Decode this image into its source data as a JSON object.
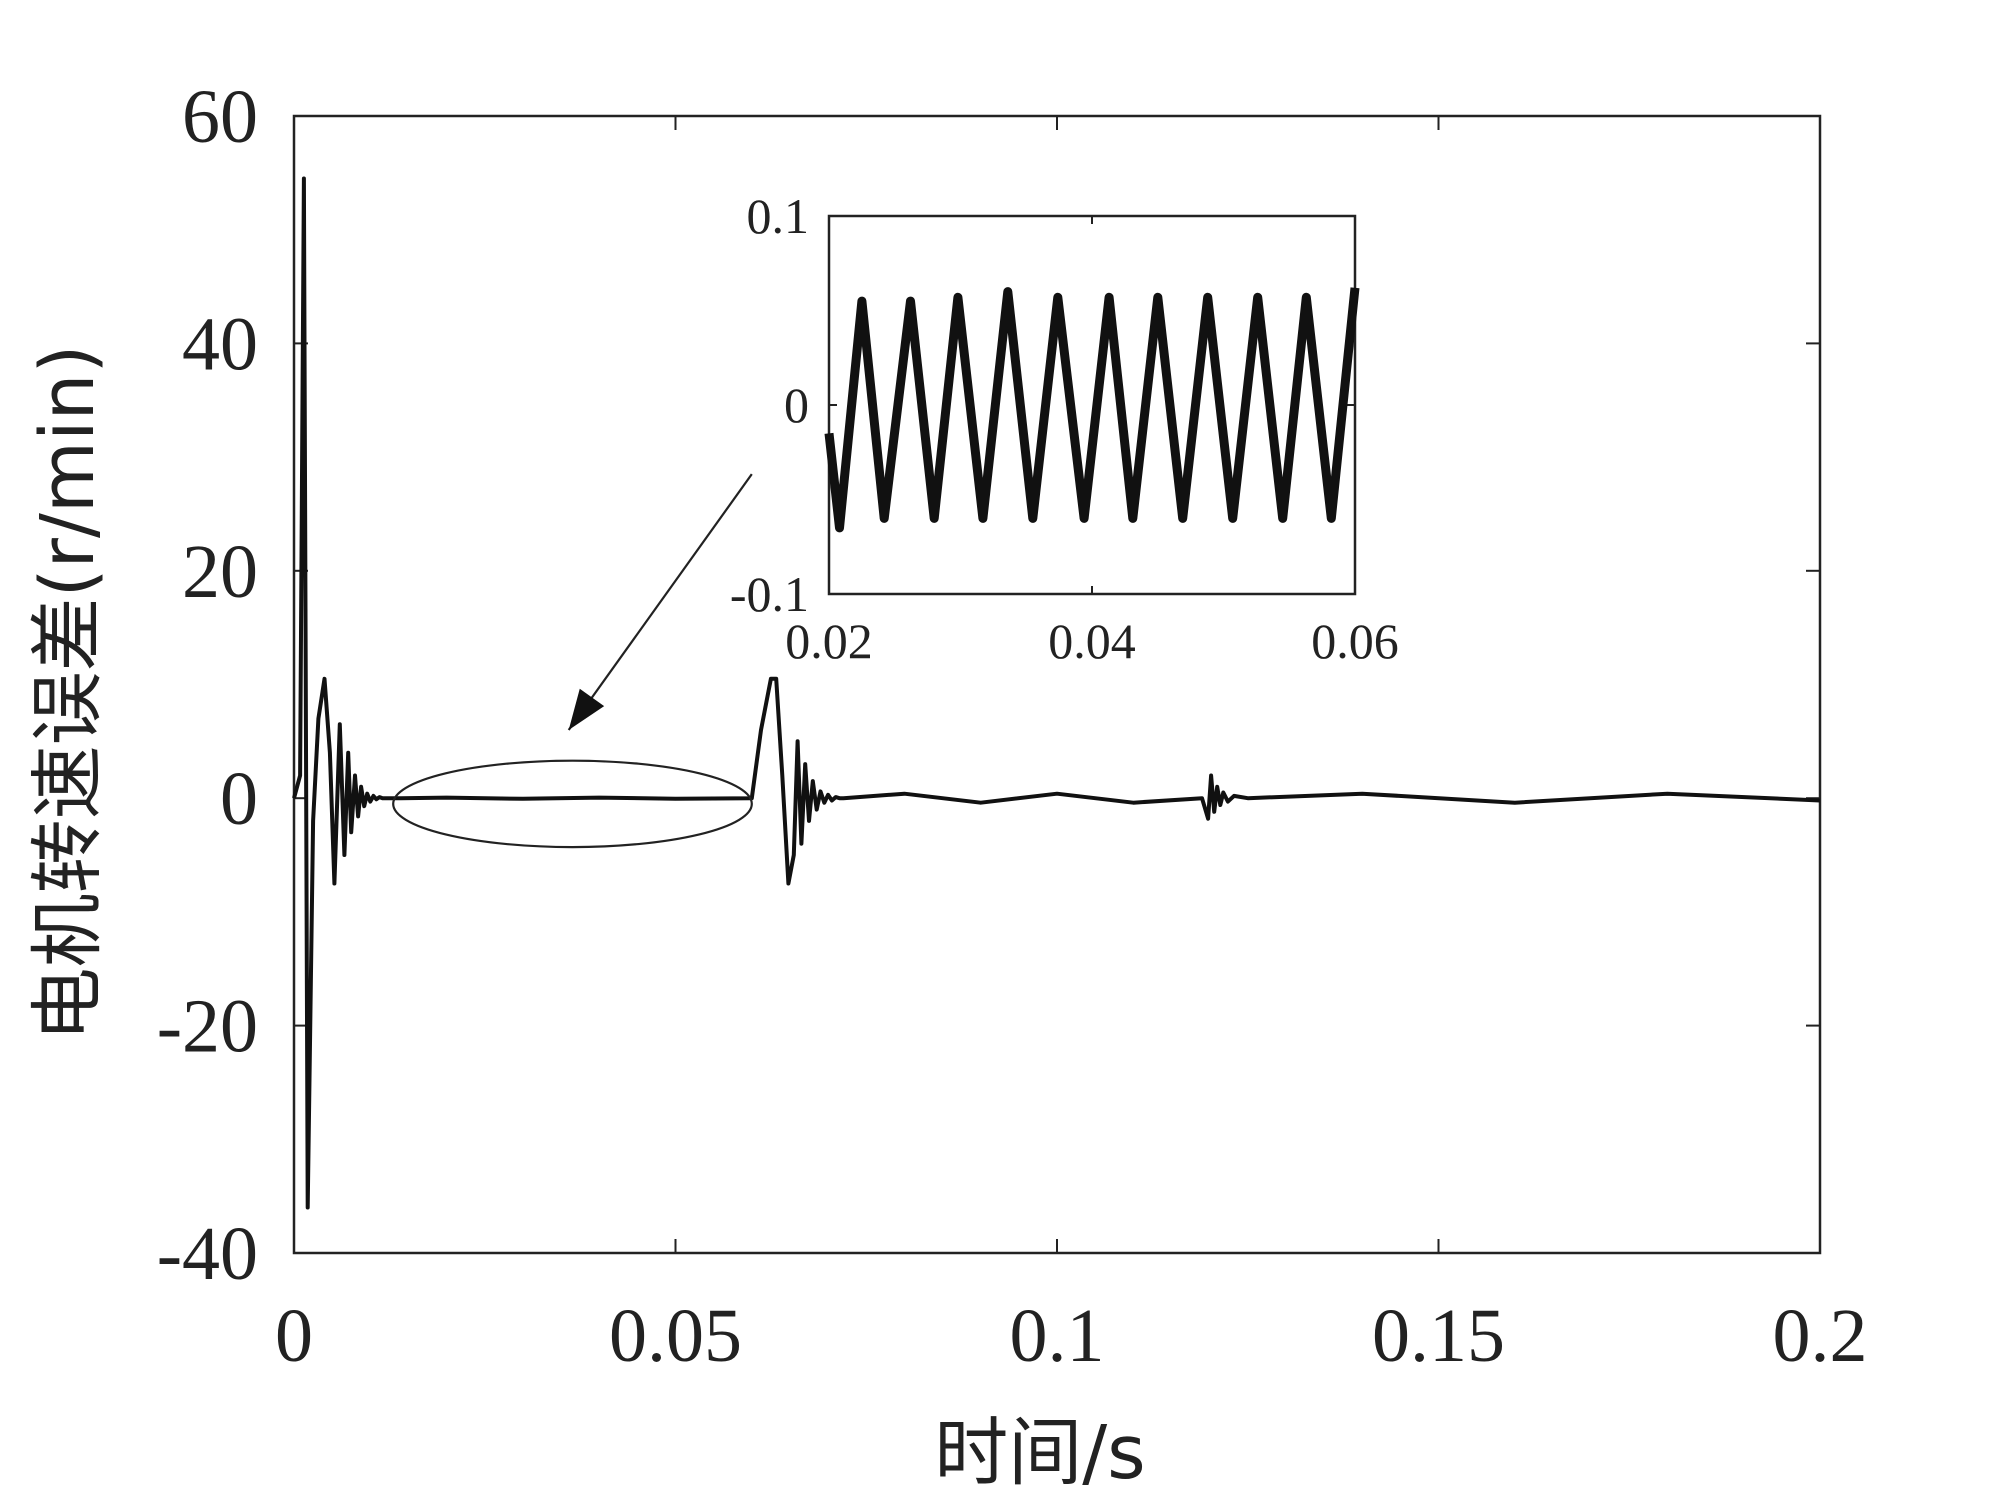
{
  "chart_data": [
    {
      "type": "line",
      "title": "",
      "xlabel": "时间/s",
      "ylabel": "电机转速误差(r/min)",
      "xlim": [
        0,
        0.2
      ],
      "ylim": [
        -40,
        60
      ],
      "xticks": [
        0,
        0.05,
        0.1,
        0.15,
        0.2
      ],
      "xtick_labels": [
        "0",
        "0.05",
        "0.1",
        "0.15",
        "0.2"
      ],
      "yticks": [
        -40,
        -20,
        0,
        20,
        40,
        60
      ],
      "ytick_labels": [
        "-40",
        "-20",
        "0",
        "20",
        "40",
        "60"
      ],
      "grid": false,
      "legend": "none",
      "line_color": "#111111",
      "series": [
        {
          "x": [
            0,
            0.0008,
            0.0013,
            0.0018,
            0.0025,
            0.0032,
            0.004,
            0.0047,
            0.0053,
            0.006,
            0.0066,
            0.0071,
            0.0075,
            0.008,
            0.0084,
            0.0088,
            0.0092,
            0.0096,
            0.01,
            0.0104,
            0.0108,
            0.0112,
            0.0116,
            0.012,
            0.0125,
            0.013,
            0.0135,
            0.014,
            0.02,
            0.03,
            0.04,
            0.05,
            0.06,
            0.0612,
            0.0625,
            0.0632,
            0.064,
            0.0648,
            0.0655,
            0.066,
            0.0665,
            0.067,
            0.0675,
            0.068,
            0.0685,
            0.069,
            0.0695,
            0.07,
            0.0705,
            0.071,
            0.0715,
            0.072,
            0.08,
            0.09,
            0.1,
            0.11,
            0.119,
            0.1198,
            0.1202,
            0.1206,
            0.121,
            0.1214,
            0.1218,
            0.1224,
            0.1232,
            0.125,
            0.14,
            0.16,
            0.18,
            0.2
          ],
          "y": [
            0,
            2,
            54.5,
            -36,
            -2,
            7,
            10.5,
            4,
            -7.5,
            6.5,
            -5,
            4,
            -3,
            2,
            -1.6,
            1,
            -0.7,
            0.4,
            -0.3,
            0.2,
            -0.1,
            0.1,
            0,
            0,
            0,
            0,
            0,
            0,
            0.05,
            -0.05,
            0.05,
            -0.05,
            0,
            6,
            10.5,
            10.5,
            2,
            -7.5,
            -5,
            5,
            -4,
            3,
            -2,
            1.5,
            -1,
            0.6,
            -0.4,
            0.3,
            -0.2,
            0.1,
            0,
            0,
            0.4,
            -0.4,
            0.4,
            -0.4,
            0,
            -1.8,
            2,
            -1.2,
            1,
            -0.6,
            0.5,
            -0.3,
            0.2,
            0,
            0.4,
            -0.4,
            0.4,
            -0.2
          ]
        }
      ],
      "annotations": [
        {
          "type": "ellipse",
          "x_range": [
            0.013,
            0.06
          ],
          "y_range": [
            -4.3,
            3.3
          ]
        },
        {
          "type": "arrow",
          "from": [
            0.06,
            28.5
          ],
          "to": [
            0.036,
            6
          ]
        }
      ]
    },
    {
      "type": "line",
      "role": "inset",
      "title": "",
      "xlim": [
        0.02,
        0.06
      ],
      "ylim": [
        -0.1,
        0.1
      ],
      "xticks": [
        0.02,
        0.04,
        0.06
      ],
      "xtick_labels": [
        "0.02",
        "0.04",
        "0.06"
      ],
      "yticks": [
        -0.1,
        0,
        0.1
      ],
      "ytick_labels": [
        "-0.1",
        "0",
        "0.1"
      ],
      "grid": false,
      "line_color": "#111111",
      "series": [
        {
          "x": [
            0.02,
            0.0208,
            0.0225,
            0.0242,
            0.0262,
            0.028,
            0.0298,
            0.0317,
            0.0336,
            0.0355,
            0.0374,
            0.0394,
            0.0413,
            0.0431,
            0.045,
            0.0469,
            0.0488,
            0.0507,
            0.0526,
            0.0545,
            0.0563,
            0.0582,
            0.06
          ],
          "y": [
            -0.015,
            -0.065,
            0.055,
            -0.06,
            0.055,
            -0.06,
            0.057,
            -0.06,
            0.06,
            -0.06,
            0.057,
            -0.06,
            0.057,
            -0.06,
            0.057,
            -0.06,
            0.057,
            -0.06,
            0.057,
            -0.06,
            0.057,
            -0.06,
            0.062
          ]
        }
      ]
    }
  ]
}
